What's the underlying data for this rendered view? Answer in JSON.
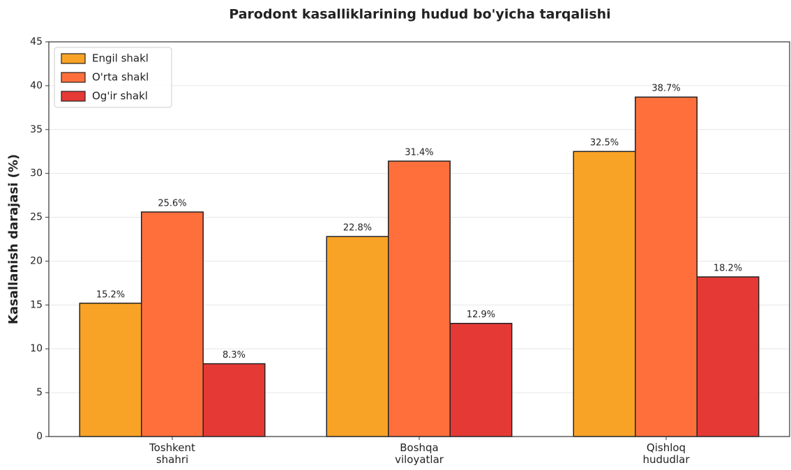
{
  "chart_data": {
    "type": "bar",
    "title": "Parodont kasalliklarining hudud bo'yicha tarqalishi",
    "ylabel": "Kasallanish darajasi (%)",
    "categories": [
      "Toshkent\nshahri",
      "Boshqa\nviloyatlar",
      "Qishloq\nhududlar"
    ],
    "series": [
      {
        "name": "Engil shakl",
        "color": "#f9a326",
        "values": [
          15.2,
          22.8,
          32.5
        ],
        "value_labels": [
          "15.2%",
          "22.8%",
          "32.5%"
        ]
      },
      {
        "name": "O'rta shakl",
        "color": "#ff6f3c",
        "values": [
          25.6,
          31.4,
          38.7
        ],
        "value_labels": [
          "25.6%",
          "31.4%",
          "38.7%"
        ]
      },
      {
        "name": "Og'ir shakl",
        "color": "#e53935",
        "values": [
          8.3,
          12.9,
          18.2
        ],
        "value_labels": [
          "8.3%",
          "12.9%",
          "18.2%"
        ]
      }
    ],
    "ylim": [
      0,
      45
    ],
    "yticks": [
      0,
      5,
      10,
      15,
      20,
      25,
      30,
      35,
      40,
      45
    ],
    "grid": true,
    "legend": "upper left"
  }
}
